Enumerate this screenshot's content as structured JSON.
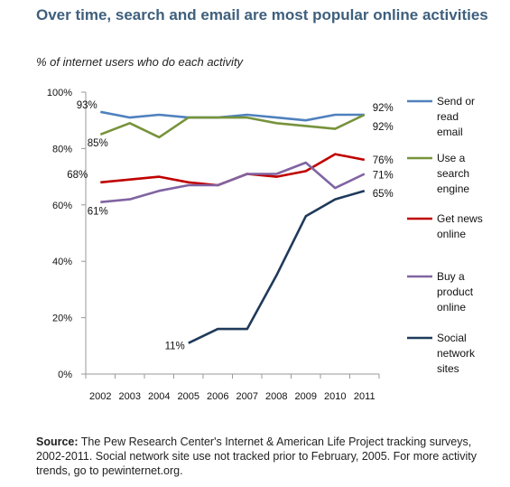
{
  "title": "Over time, search and email are most popular online activities",
  "subtitle": "% of internet users who do each activity",
  "source_label": "Source:",
  "source_text": "The Pew Research Center's Internet & American Life Project tracking surveys, 2002-2011. Social network site use not tracked prior to February, 2005. For more activity trends, go to pewinternet.org.",
  "chart_data": {
    "type": "line",
    "title": "Over time, search and email are most popular online activities",
    "subtitle": "% of internet users who do each activity",
    "xlabel": "",
    "ylabel": "",
    "x": [
      "2002",
      "2003",
      "2004",
      "2005",
      "2006",
      "2007",
      "2008",
      "2009",
      "2010",
      "2011"
    ],
    "ylim": [
      0,
      100
    ],
    "yticks": [
      0,
      20,
      40,
      60,
      80,
      100
    ],
    "ytick_labels": [
      "0%",
      "20%",
      "40%",
      "60%",
      "80%",
      "100%"
    ],
    "grid": false,
    "legend_position": "right",
    "series": [
      {
        "name": "Send or read email",
        "legend_lines": [
          "Send or",
          "read",
          "email"
        ],
        "color": "#4f81bd",
        "values": [
          93,
          91,
          92,
          91,
          91,
          92,
          91,
          90,
          92,
          92
        ]
      },
      {
        "name": "Use a search engine",
        "legend_lines": [
          "Use a",
          "search",
          "engine"
        ],
        "color": "#77933c",
        "values": [
          85,
          89,
          84,
          91,
          91,
          91,
          89,
          88,
          87,
          92
        ]
      },
      {
        "name": "Get news online",
        "legend_lines": [
          "Get news",
          "online"
        ],
        "color": "#c00000",
        "values": [
          68,
          69,
          70,
          68,
          67,
          71,
          70,
          72,
          78,
          76
        ]
      },
      {
        "name": "Buy a product online",
        "legend_lines": [
          "Buy a",
          "product",
          "online"
        ],
        "color": "#8064a2",
        "values": [
          61,
          62,
          65,
          67,
          67,
          71,
          71,
          75,
          66,
          71
        ]
      },
      {
        "name": "Social network sites",
        "legend_lines": [
          "Social",
          "network",
          "sites"
        ],
        "color": "#1f3a5a",
        "values": [
          null,
          null,
          null,
          11,
          16,
          16,
          35,
          56,
          62,
          65
        ]
      }
    ],
    "annotations": [
      {
        "text": "93%",
        "series": 0,
        "x": "2002"
      },
      {
        "text": "85%",
        "series": 1,
        "x": "2002"
      },
      {
        "text": "68%",
        "series": 2,
        "x": "2002"
      },
      {
        "text": "61%",
        "series": 3,
        "x": "2002"
      },
      {
        "text": "11%",
        "series": 4,
        "x": "2005"
      },
      {
        "text": "92%",
        "series": 0,
        "x": "2011"
      },
      {
        "text": "92%",
        "series": 1,
        "x": "2011"
      },
      {
        "text": "76%",
        "series": 2,
        "x": "2011"
      },
      {
        "text": "71%",
        "series": 3,
        "x": "2011"
      },
      {
        "text": "65%",
        "series": 4,
        "x": "2011"
      }
    ]
  }
}
